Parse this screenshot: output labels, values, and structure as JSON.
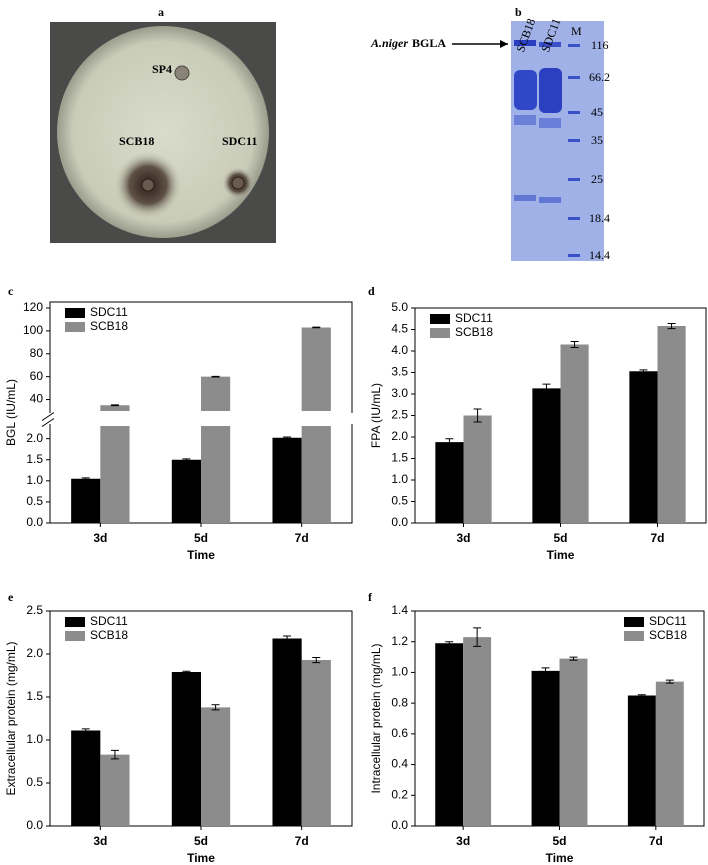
{
  "images": [
    {
      "label": "a",
      "annotations": [
        "SP4",
        "SCB18",
        "SDC11"
      ]
    },
    {
      "label": "b",
      "lanes": [
        "SCB18",
        "SDC11",
        "M"
      ],
      "arrow_label": [
        "A.niger",
        "BGLA"
      ],
      "markers": [
        "116",
        "66.2",
        "45",
        "35",
        "25",
        "18.4",
        "14.4"
      ]
    }
  ],
  "chart_data": [
    {
      "type": "bar",
      "label": "c",
      "x_label": "Time",
      "y_label": "BGL (IU/mL)",
      "categories": [
        "3d",
        "5d",
        "7d"
      ],
      "series": [
        {
          "name": "SDC11",
          "color": "#000000",
          "values": [
            1.05,
            1.5,
            2.02
          ],
          "errors": [
            0.02,
            0.02,
            0.02
          ]
        },
        {
          "name": "SCB18",
          "color": "#8c8c8c",
          "values": [
            35,
            60,
            103
          ],
          "errors": [
            0.3,
            0.3,
            0.3
          ]
        }
      ],
      "ylim": [
        0,
        2.3
      ],
      "yticks": [
        {
          "value": 0,
          "label": "0.0"
        },
        0.5,
        {
          "value": 1,
          "label": "1.0"
        },
        1.5,
        {
          "value": 2,
          "label": "2.0"
        }
      ],
      "y_upper_lim": [
        30,
        120
      ],
      "y_upper_ticks": [
        40,
        60,
        80,
        100,
        120
      ],
      "legend": "upper left"
    },
    {
      "type": "bar",
      "label": "d",
      "x_label": "Time",
      "y_label": "FPA (IU/mL)",
      "categories": [
        "3d",
        "5d",
        "7d"
      ],
      "series": [
        {
          "name": "SDC11",
          "color": "#000000",
          "values": [
            1.88,
            3.13,
            3.53
          ],
          "errors": [
            0.08,
            0.1,
            0.03
          ]
        },
        {
          "name": "SCB18",
          "color": "#8c8c8c",
          "values": [
            2.5,
            4.15,
            4.58
          ],
          "errors": [
            0.15,
            0.07,
            0.06
          ]
        }
      ],
      "ylim": [
        0,
        5
      ],
      "yticks": [
        {
          "value": 0,
          "label": "0.0"
        },
        0.5,
        {
          "value": 1,
          "label": "1.0"
        },
        1.5,
        {
          "value": 2,
          "label": "2.0"
        },
        2.5,
        {
          "value": 3,
          "label": "3.0"
        },
        3.5,
        {
          "value": 4,
          "label": "4.0"
        },
        4.5,
        {
          "value": 5,
          "label": "5.0"
        }
      ],
      "legend": "upper left"
    },
    {
      "type": "bar",
      "label": "e",
      "x_label": "Time",
      "y_label": "Extracellular protein (mg/mL)",
      "categories": [
        "3d",
        "5d",
        "7d"
      ],
      "series": [
        {
          "name": "SDC11",
          "color": "#000000",
          "values": [
            1.11,
            1.79,
            2.18
          ],
          "errors": [
            0.02,
            0.01,
            0.03
          ]
        },
        {
          "name": "SCB18",
          "color": "#8c8c8c",
          "values": [
            0.83,
            1.38,
            1.93
          ],
          "errors": [
            0.05,
            0.03,
            0.03
          ]
        }
      ],
      "ylim": [
        0,
        2.5
      ],
      "yticks": [
        {
          "value": 0,
          "label": "0.0"
        },
        0.5,
        {
          "value": 1,
          "label": "1.0"
        },
        1.5,
        {
          "value": 2,
          "label": "2.0"
        },
        2.5
      ],
      "legend": "upper left"
    },
    {
      "type": "bar",
      "label": "f",
      "x_label": "Time",
      "y_label": "Intracellular protein (mg/mL)",
      "categories": [
        "3d",
        "5d",
        "7d"
      ],
      "series": [
        {
          "name": "SDC11",
          "color": "#000000",
          "values": [
            1.19,
            1.01,
            0.85
          ],
          "errors": [
            0.01,
            0.02,
            0.005
          ]
        },
        {
          "name": "SCB18",
          "color": "#8c8c8c",
          "values": [
            1.23,
            1.09,
            0.94
          ],
          "errors": [
            0.06,
            0.01,
            0.01
          ]
        }
      ],
      "ylim": [
        0,
        1.4
      ],
      "yticks": [
        {
          "value": 0,
          "label": "0.0"
        },
        0.2,
        0.4,
        0.6,
        0.8,
        {
          "value": 1,
          "label": "1.0"
        },
        1.2,
        1.4
      ],
      "legend": "upper right"
    }
  ]
}
